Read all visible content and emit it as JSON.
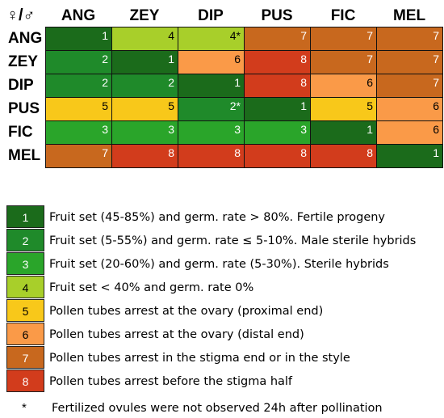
{
  "matrix": {
    "corner_label": "♀/♂",
    "columns": [
      "ANG",
      "ZEY",
      "DIP",
      "PUS",
      "FIC",
      "MEL"
    ],
    "rows": [
      {
        "label": "ANG",
        "cells": [
          "1",
          "4",
          "4*",
          "7",
          "7",
          "7"
        ]
      },
      {
        "label": "ZEY",
        "cells": [
          "2",
          "1",
          "6",
          "8",
          "7",
          "7"
        ]
      },
      {
        "label": "DIP",
        "cells": [
          "2",
          "2",
          "1",
          "8",
          "6",
          "7"
        ]
      },
      {
        "label": "PUS",
        "cells": [
          "5",
          "5",
          "2*",
          "1",
          "5",
          "6"
        ]
      },
      {
        "label": "FIC",
        "cells": [
          "3",
          "3",
          "3",
          "3",
          "1",
          "6"
        ]
      },
      {
        "label": "MEL",
        "cells": [
          "7",
          "8",
          "8",
          "8",
          "8",
          "1"
        ]
      }
    ]
  },
  "legend": [
    {
      "code": "1",
      "text": "Fruit set (45-85%) and germ. rate > 80%. Fertile progeny",
      "color": "#1b6b1b",
      "text_color": "#ffffff"
    },
    {
      "code": "2",
      "text": "Fruit set (5-55%) and germ. rate ≤ 5-10%. Male sterile hybrids",
      "color": "#1f8a2a",
      "text_color": "#ffffff"
    },
    {
      "code": "3",
      "text": "Fruit set (20-60%) and germ. rate (5-30%). Sterile hybrids",
      "color": "#2aa52a",
      "text_color": "#ffffff"
    },
    {
      "code": "4",
      "text": "Fruit set < 40%  and germ. rate 0%",
      "color": "#a8cf2a",
      "text_color": "#000000"
    },
    {
      "code": "5",
      "text": "Pollen tubes arrest at the ovary (proximal end)",
      "color": "#f8c81a",
      "text_color": "#000000"
    },
    {
      "code": "6",
      "text": "Pollen tubes arrest at the ovary (distal end)",
      "color": "#fa9a48",
      "text_color": "#000000"
    },
    {
      "code": "7",
      "text": "Pollen tubes arrest in the stigma end or in the style",
      "color": "#c8681e",
      "text_color": "#ffffff"
    },
    {
      "code": "8",
      "text": "Pollen tubes arrest before the stigma half",
      "color": "#d23c1c",
      "text_color": "#ffffff"
    }
  ],
  "footnote": {
    "symbol": "*",
    "text": "Fertilized ovules were not observed 24h after pollination"
  }
}
